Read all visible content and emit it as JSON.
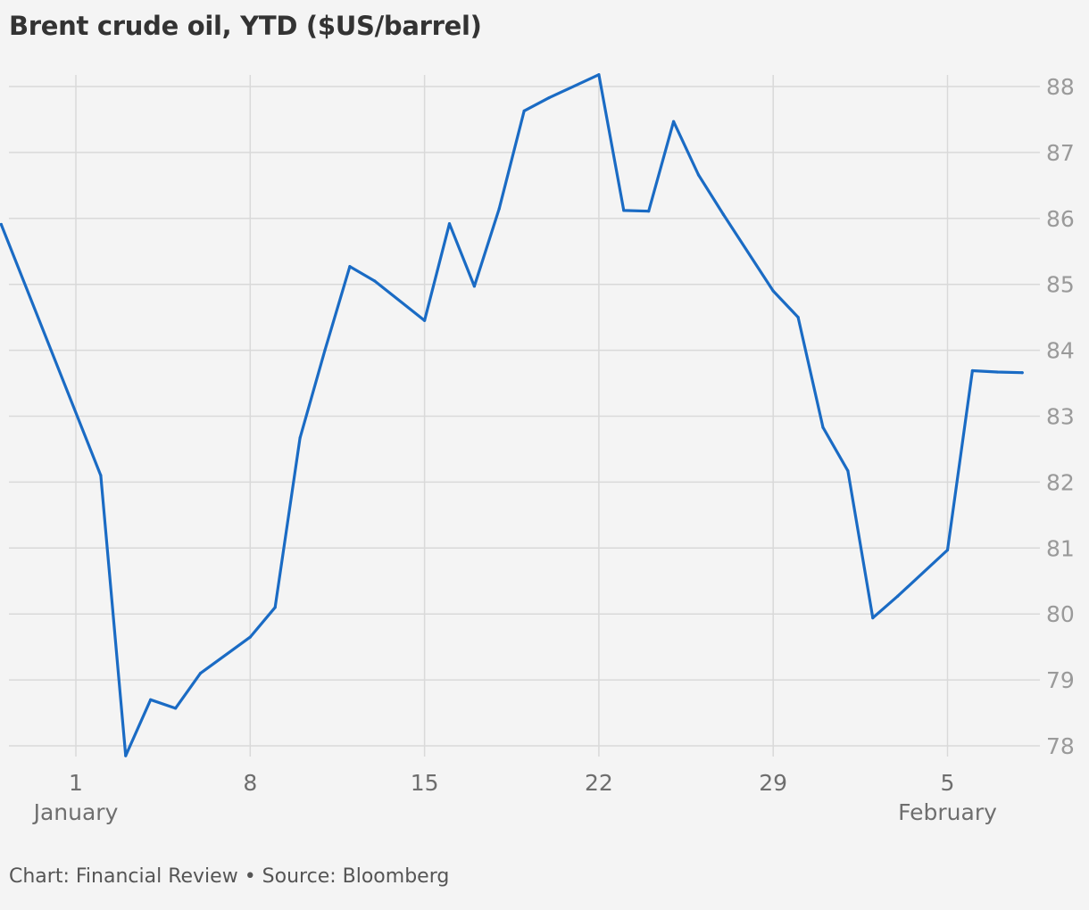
{
  "header": {
    "title": "Brent crude oil, YTD ($US/barrel)"
  },
  "footer": {
    "credit": "Chart: Financial Review",
    "separator": "•",
    "source": "Source: Bloomberg"
  },
  "colors": {
    "line": "#1a6bc4",
    "grid": "#d9d9d9",
    "background": "#f4f4f4"
  },
  "chart_data": {
    "type": "line",
    "title": "Brent crude oil, YTD ($US/barrel)",
    "xlabel": "",
    "ylabel": "",
    "y_axis_position": "right",
    "grid": true,
    "legend": "none",
    "ylim": [
      78,
      88
    ],
    "y_ticks": [
      78,
      79,
      80,
      81,
      82,
      83,
      84,
      85,
      86,
      87,
      88
    ],
    "x_ticks": [
      {
        "date": "2024-01-01",
        "label": "1",
        "month_label": "January"
      },
      {
        "date": "2024-01-08",
        "label": "8",
        "month_label": ""
      },
      {
        "date": "2024-01-15",
        "label": "15",
        "month_label": ""
      },
      {
        "date": "2024-01-22",
        "label": "22",
        "month_label": ""
      },
      {
        "date": "2024-01-29",
        "label": "29",
        "month_label": ""
      },
      {
        "date": "2024-02-05",
        "label": "5",
        "month_label": "February"
      }
    ],
    "series": [
      {
        "x": [
          "2023-12-29",
          "2024-01-02",
          "2024-01-03",
          "2024-01-04",
          "2024-01-05",
          "2024-01-06",
          "2024-01-08",
          "2024-01-09",
          "2024-01-10",
          "2024-01-11",
          "2024-01-12",
          "2024-01-13",
          "2024-01-15",
          "2024-01-16",
          "2024-01-17",
          "2024-01-18",
          "2024-01-19",
          "2024-01-20",
          "2024-01-22",
          "2024-01-23",
          "2024-01-24",
          "2024-01-25",
          "2024-01-26",
          "2024-01-27",
          "2024-01-29",
          "2024-01-30",
          "2024-01-31",
          "2024-02-01",
          "2024-02-02",
          "2024-02-03",
          "2024-02-05",
          "2024-02-06",
          "2024-02-07",
          "2024-02-08"
        ],
        "values": [
          85.91,
          82.1,
          77.85,
          78.7,
          78.57,
          79.1,
          79.65,
          80.1,
          82.67,
          84.0,
          85.27,
          85.05,
          84.45,
          85.92,
          84.97,
          86.15,
          87.63,
          87.83,
          88.18,
          86.12,
          86.11,
          87.47,
          86.66,
          86.06,
          84.9,
          84.5,
          82.83,
          82.17,
          79.94,
          80.27,
          80.97,
          83.69,
          83.67,
          83.66
        ]
      }
    ]
  }
}
